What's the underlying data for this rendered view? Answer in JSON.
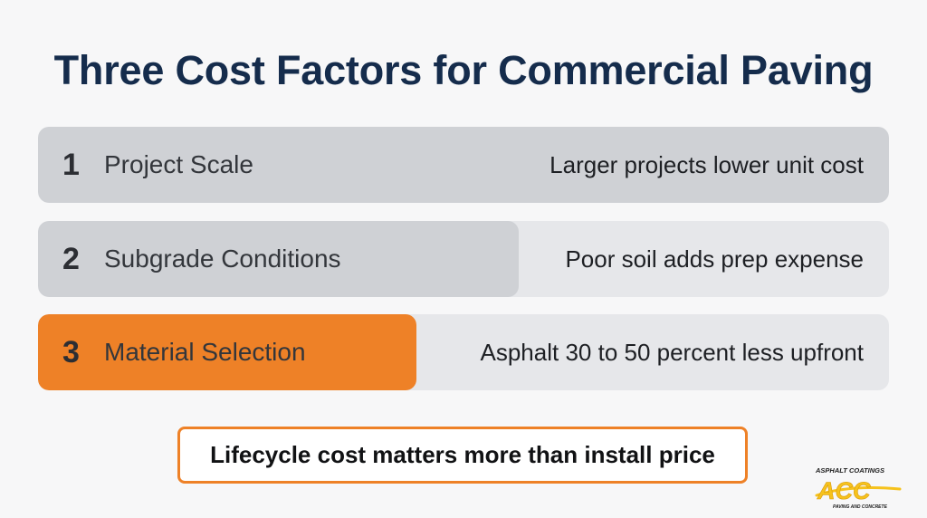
{
  "title": "Three Cost Factors for Commercial Paving",
  "factors": [
    {
      "number": "1",
      "label": "Project Scale",
      "description": "Larger projects lower unit cost",
      "fill_level": 1.0,
      "highlight": false
    },
    {
      "number": "2",
      "label": "Subgrade Conditions",
      "description": "Poor soil adds prep expense",
      "fill_level": 0.565,
      "highlight": false
    },
    {
      "number": "3",
      "label": "Material Selection",
      "description": "Asphalt 30 to 50 percent less upfront",
      "fill_level": 0.445,
      "highlight": true
    }
  ],
  "callout": "Lifecycle cost matters more than install price",
  "logo": {
    "top_text": "ASPHALT COATINGS",
    "mark": "ACC",
    "bottom_text": "PAVING AND CONCRETE"
  },
  "colors": {
    "title": "#152c4c",
    "accent": "#ee8127",
    "row_track": "#e6e7ea",
    "row_fill": "#cfd1d5",
    "logo_yellow": "#f6c21c"
  }
}
